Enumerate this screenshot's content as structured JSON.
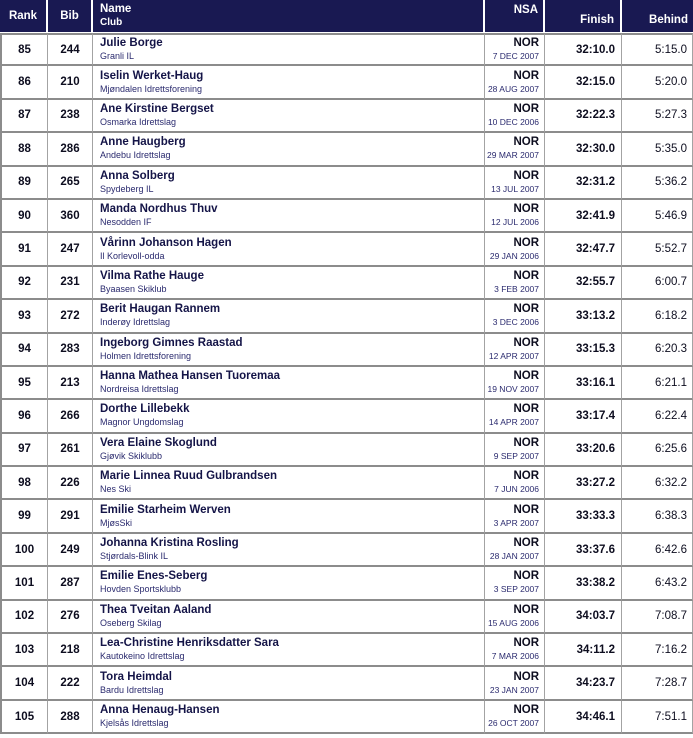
{
  "colors": {
    "header_bg": "#191952",
    "header_text": "#ffffff",
    "name_text": "#141447",
    "club_text": "#2a2a6e",
    "value_text": "#0d0d1f",
    "row_line": "#8c8c8c",
    "grid_line": "#a3a3a3"
  },
  "table": {
    "columns": {
      "rank": "Rank",
      "bib": "Bib",
      "name": "Name",
      "club": "Club",
      "nsa": "NSA",
      "finish": "Finish",
      "behind": "Behind"
    },
    "rows": [
      {
        "rank": "85",
        "bib": "244",
        "name": "Julie Borge",
        "club": "Granli IL",
        "nsa": "NOR",
        "date": "7 DEC 2007",
        "finish": "32:10.0",
        "behind": "5:15.0"
      },
      {
        "rank": "86",
        "bib": "210",
        "name": "Iselin Werket-Haug",
        "club": "Mjøndalen Idrettsforening",
        "nsa": "NOR",
        "date": "28 AUG 2007",
        "finish": "32:15.0",
        "behind": "5:20.0"
      },
      {
        "rank": "87",
        "bib": "238",
        "name": "Ane Kirstine Bergset",
        "club": "Osmarka Idrettslag",
        "nsa": "NOR",
        "date": "10 DEC 2006",
        "finish": "32:22.3",
        "behind": "5:27.3"
      },
      {
        "rank": "88",
        "bib": "286",
        "name": "Anne Haugberg",
        "club": "Andebu Idrettslag",
        "nsa": "NOR",
        "date": "29 MAR 2007",
        "finish": "32:30.0",
        "behind": "5:35.0"
      },
      {
        "rank": "89",
        "bib": "265",
        "name": "Anna Solberg",
        "club": "Spydeberg IL",
        "nsa": "NOR",
        "date": "13 JUL 2007",
        "finish": "32:31.2",
        "behind": "5:36.2"
      },
      {
        "rank": "90",
        "bib": "360",
        "name": "Manda Nordhus Thuv",
        "club": "Nesodden IF",
        "nsa": "NOR",
        "date": "12 JUL 2006",
        "finish": "32:41.9",
        "behind": "5:46.9"
      },
      {
        "rank": "91",
        "bib": "247",
        "name": "Vårinn Johanson Hagen",
        "club": "Il Korlevoll-odda",
        "nsa": "NOR",
        "date": "29 JAN 2006",
        "finish": "32:47.7",
        "behind": "5:52.7"
      },
      {
        "rank": "92",
        "bib": "231",
        "name": "Vilma Rathe Hauge",
        "club": "Byaasen Skiklub",
        "nsa": "NOR",
        "date": "3 FEB 2007",
        "finish": "32:55.7",
        "behind": "6:00.7"
      },
      {
        "rank": "93",
        "bib": "272",
        "name": "Berit Haugan Rannem",
        "club": "Inderøy Idrettslag",
        "nsa": "NOR",
        "date": "3 DEC 2006",
        "finish": "33:13.2",
        "behind": "6:18.2"
      },
      {
        "rank": "94",
        "bib": "283",
        "name": "Ingeborg Gimnes Raastad",
        "club": "Holmen Idrettsforening",
        "nsa": "NOR",
        "date": "12 APR 2007",
        "finish": "33:15.3",
        "behind": "6:20.3"
      },
      {
        "rank": "95",
        "bib": "213",
        "name": "Hanna Mathea Hansen Tuoremaa",
        "club": "Nordreisa Idrettslag",
        "nsa": "NOR",
        "date": "19 NOV 2007",
        "finish": "33:16.1",
        "behind": "6:21.1"
      },
      {
        "rank": "96",
        "bib": "266",
        "name": "Dorthe Lillebekk",
        "club": "Magnor Ungdomslag",
        "nsa": "NOR",
        "date": "14 APR 2007",
        "finish": "33:17.4",
        "behind": "6:22.4"
      },
      {
        "rank": "97",
        "bib": "261",
        "name": "Vera Elaine Skoglund",
        "club": "Gjøvik Skiklubb",
        "nsa": "NOR",
        "date": "9 SEP 2007",
        "finish": "33:20.6",
        "behind": "6:25.6"
      },
      {
        "rank": "98",
        "bib": "226",
        "name": "Marie Linnea Ruud Gulbrandsen",
        "club": "Nes Ski",
        "nsa": "NOR",
        "date": "7 JUN 2006",
        "finish": "33:27.2",
        "behind": "6:32.2"
      },
      {
        "rank": "99",
        "bib": "291",
        "name": "Emilie Starheim Werven",
        "club": "MjøsSki",
        "nsa": "NOR",
        "date": "3 APR 2007",
        "finish": "33:33.3",
        "behind": "6:38.3"
      },
      {
        "rank": "100",
        "bib": "249",
        "name": "Johanna Kristina Rosling",
        "club": "Stjørdals-Blink IL",
        "nsa": "NOR",
        "date": "28 JAN 2007",
        "finish": "33:37.6",
        "behind": "6:42.6"
      },
      {
        "rank": "101",
        "bib": "287",
        "name": "Emilie Enes-Seberg",
        "club": "Hovden Sportsklubb",
        "nsa": "NOR",
        "date": "3 SEP 2007",
        "finish": "33:38.2",
        "behind": "6:43.2"
      },
      {
        "rank": "102",
        "bib": "276",
        "name": "Thea Tveitan Aaland",
        "club": "Oseberg Skilag",
        "nsa": "NOR",
        "date": "15 AUG 2006",
        "finish": "34:03.7",
        "behind": "7:08.7"
      },
      {
        "rank": "103",
        "bib": "218",
        "name": "Lea-Christine Henriksdatter Sara",
        "club": "Kautokeino Idrettslag",
        "nsa": "NOR",
        "date": "7 MAR 2006",
        "finish": "34:11.2",
        "behind": "7:16.2"
      },
      {
        "rank": "104",
        "bib": "222",
        "name": "Tora Heimdal",
        "club": "Bardu Idrettslag",
        "nsa": "NOR",
        "date": "23 JAN 2007",
        "finish": "34:23.7",
        "behind": "7:28.7"
      },
      {
        "rank": "105",
        "bib": "288",
        "name": "Anna Henaug-Hansen",
        "club": "Kjelsås Idrettslag",
        "nsa": "NOR",
        "date": "26 OCT 2007",
        "finish": "34:46.1",
        "behind": "7:51.1"
      }
    ]
  }
}
